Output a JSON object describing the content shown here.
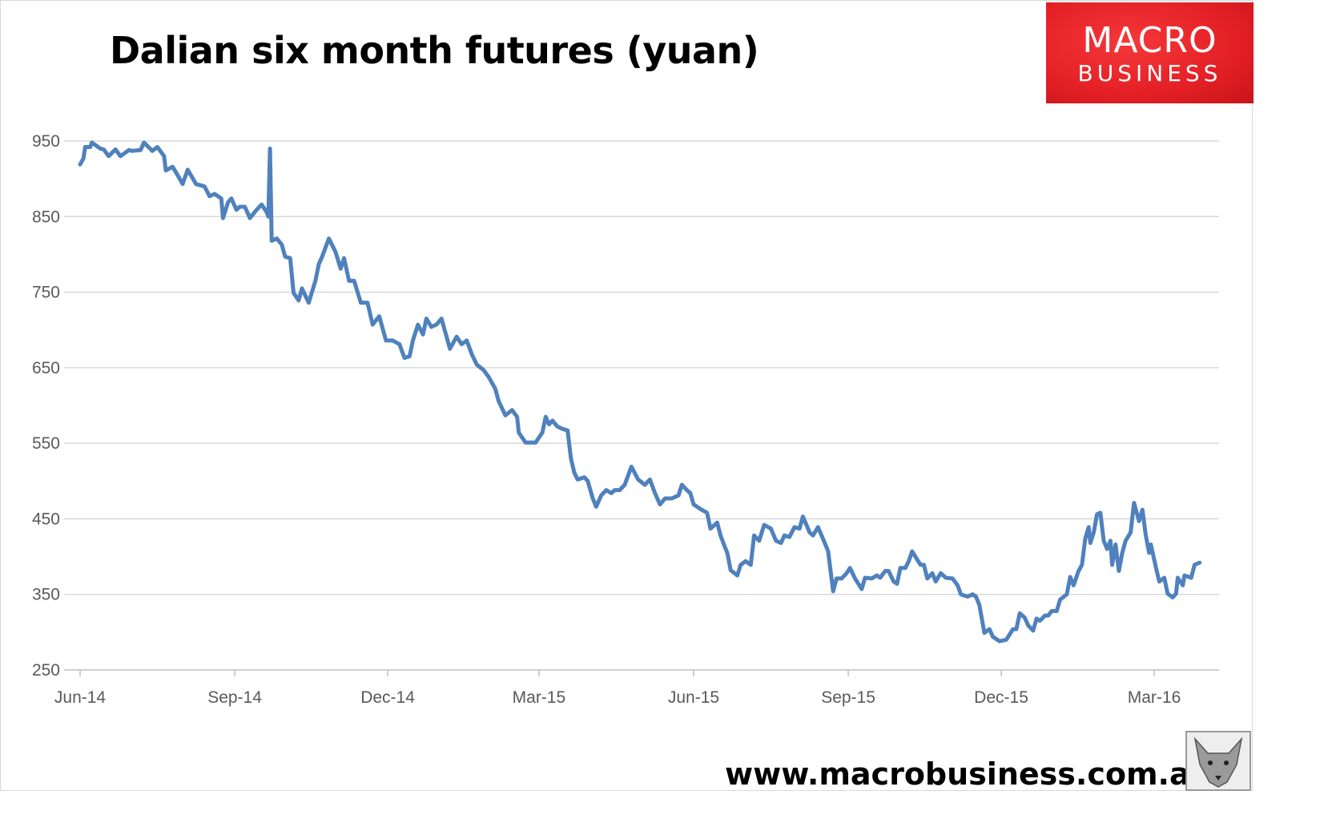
{
  "title": "Dalian six month futures (yuan)",
  "logo": {
    "line1": "MACRO",
    "line2": "BUSINESS",
    "color": "#e32025"
  },
  "footer": "www.macrobusiness.com.au",
  "chart_data": {
    "type": "line",
    "title": "Dalian six month futures (yuan)",
    "xlabel": "",
    "ylabel": "",
    "ylim": [
      250,
      950
    ],
    "yticks": [
      "250",
      "350",
      "450",
      "550",
      "650",
      "750",
      "850",
      "950"
    ],
    "xticks": [
      {
        "date": "2014-06-01",
        "label": "Jun-14"
      },
      {
        "date": "2014-09-01",
        "label": "Sep-14"
      },
      {
        "date": "2014-12-01",
        "label": "Dec-14"
      },
      {
        "date": "2015-03-01",
        "label": "Mar-15"
      },
      {
        "date": "2015-06-01",
        "label": "Jun-15"
      },
      {
        "date": "2015-09-01",
        "label": "Sep-15"
      },
      {
        "date": "2015-12-01",
        "label": "Dec-15"
      },
      {
        "date": "2016-03-01",
        "label": "Mar-16"
      }
    ],
    "xlim": [
      "2014-06-01",
      "2016-04-08"
    ],
    "grid": "horizontal",
    "legend": "none",
    "line_color": "#4f81bd",
    "series": [
      {
        "points": [
          [
            "2014-06-01",
            919
          ],
          [
            "2014-06-03",
            927
          ],
          [
            "2014-06-04",
            942
          ],
          [
            "2014-06-07",
            942
          ],
          [
            "2014-06-08",
            948
          ],
          [
            "2014-06-13",
            940
          ],
          [
            "2014-06-15",
            939
          ],
          [
            "2014-06-18",
            930
          ],
          [
            "2014-06-22",
            939
          ],
          [
            "2014-06-25",
            930
          ],
          [
            "2014-06-30",
            938
          ],
          [
            "2014-07-02",
            937
          ],
          [
            "2014-07-07",
            938
          ],
          [
            "2014-07-09",
            948
          ],
          [
            "2014-07-14",
            937
          ],
          [
            "2014-07-17",
            942
          ],
          [
            "2014-07-21",
            930
          ],
          [
            "2014-07-22",
            911
          ],
          [
            "2014-07-26",
            916
          ],
          [
            "2014-07-29",
            905
          ],
          [
            "2014-08-01",
            893
          ],
          [
            "2014-08-04",
            912
          ],
          [
            "2014-08-09",
            893
          ],
          [
            "2014-08-14",
            890
          ],
          [
            "2014-08-17",
            877
          ],
          [
            "2014-08-20",
            880
          ],
          [
            "2014-08-24",
            874
          ],
          [
            "2014-08-25",
            848
          ],
          [
            "2014-08-28",
            869
          ],
          [
            "2014-08-30",
            874
          ],
          [
            "2014-09-02",
            859
          ],
          [
            "2014-09-04",
            863
          ],
          [
            "2014-09-07",
            863
          ],
          [
            "2014-09-10",
            848
          ],
          [
            "2014-09-14",
            859
          ],
          [
            "2014-09-17",
            866
          ],
          [
            "2014-09-20",
            856
          ],
          [
            "2014-09-21",
            850
          ],
          [
            "2014-09-22",
            940
          ],
          [
            "2014-09-23",
            818
          ],
          [
            "2014-09-26",
            821
          ],
          [
            "2014-09-29",
            813
          ],
          [
            "2014-10-01",
            797
          ],
          [
            "2014-10-04",
            795
          ],
          [
            "2014-10-06",
            749
          ],
          [
            "2014-10-09",
            739
          ],
          [
            "2014-10-11",
            755
          ],
          [
            "2014-10-15",
            736
          ],
          [
            "2014-10-19",
            765
          ],
          [
            "2014-10-21",
            787
          ],
          [
            "2014-10-23",
            797
          ],
          [
            "2014-10-27",
            821
          ],
          [
            "2014-10-31",
            803
          ],
          [
            "2014-11-03",
            781
          ],
          [
            "2014-11-05",
            795
          ],
          [
            "2014-11-08",
            765
          ],
          [
            "2014-11-11",
            765
          ],
          [
            "2014-11-15",
            736
          ],
          [
            "2014-11-19",
            736
          ],
          [
            "2014-11-22",
            707
          ],
          [
            "2014-11-26",
            718
          ],
          [
            "2014-11-30",
            686
          ],
          [
            "2014-12-04",
            686
          ],
          [
            "2014-12-08",
            681
          ],
          [
            "2014-12-11",
            663
          ],
          [
            "2014-12-14",
            665
          ],
          [
            "2014-12-16",
            686
          ],
          [
            "2014-12-19",
            707
          ],
          [
            "2014-12-22",
            694
          ],
          [
            "2014-12-24",
            715
          ],
          [
            "2014-12-27",
            704
          ],
          [
            "2014-12-30",
            707
          ],
          [
            "2015-01-02",
            715
          ],
          [
            "2015-01-05",
            691
          ],
          [
            "2015-01-07",
            675
          ],
          [
            "2015-01-11",
            691
          ],
          [
            "2015-01-14",
            681
          ],
          [
            "2015-01-17",
            686
          ],
          [
            "2015-01-20",
            668
          ],
          [
            "2015-01-23",
            654
          ],
          [
            "2015-01-27",
            647
          ],
          [
            "2015-01-30",
            638
          ],
          [
            "2015-02-03",
            622
          ],
          [
            "2015-02-05",
            606
          ],
          [
            "2015-02-09",
            587
          ],
          [
            "2015-02-13",
            594
          ],
          [
            "2015-02-16",
            585
          ],
          [
            "2015-02-17",
            564
          ],
          [
            "2015-02-21",
            551
          ],
          [
            "2015-02-27",
            551
          ],
          [
            "2015-03-03",
            564
          ],
          [
            "2015-03-05",
            585
          ],
          [
            "2015-03-07",
            575
          ],
          [
            "2015-03-09",
            580
          ],
          [
            "2015-03-12",
            572
          ],
          [
            "2015-03-15",
            569
          ],
          [
            "2015-03-18",
            567
          ],
          [
            "2015-03-20",
            530
          ],
          [
            "2015-03-22",
            511
          ],
          [
            "2015-03-24",
            502
          ],
          [
            "2015-03-28",
            505
          ],
          [
            "2015-03-30",
            500
          ],
          [
            "2015-04-02",
            477
          ],
          [
            "2015-04-04",
            466
          ],
          [
            "2015-04-07",
            481
          ],
          [
            "2015-04-10",
            488
          ],
          [
            "2015-04-13",
            484
          ],
          [
            "2015-04-15",
            488
          ],
          [
            "2015-04-18",
            488
          ],
          [
            "2015-04-21",
            495
          ],
          [
            "2015-04-25",
            519
          ],
          [
            "2015-04-29",
            502
          ],
          [
            "2015-05-03",
            495
          ],
          [
            "2015-05-06",
            502
          ],
          [
            "2015-05-09",
            484
          ],
          [
            "2015-05-12",
            469
          ],
          [
            "2015-05-15",
            477
          ],
          [
            "2015-05-19",
            477
          ],
          [
            "2015-05-23",
            481
          ],
          [
            "2015-05-25",
            495
          ],
          [
            "2015-05-28",
            488
          ],
          [
            "2015-05-30",
            484
          ],
          [
            "2015-06-01",
            469
          ],
          [
            "2015-06-05",
            463
          ],
          [
            "2015-06-09",
            458
          ],
          [
            "2015-06-11",
            437
          ],
          [
            "2015-06-15",
            445
          ],
          [
            "2015-06-17",
            428
          ],
          [
            "2015-06-19",
            416
          ],
          [
            "2015-06-21",
            405
          ],
          [
            "2015-06-23",
            382
          ],
          [
            "2015-06-27",
            375
          ],
          [
            "2015-06-29",
            389
          ],
          [
            "2015-07-02",
            394
          ],
          [
            "2015-07-05",
            389
          ],
          [
            "2015-07-07",
            428
          ],
          [
            "2015-07-10",
            421
          ],
          [
            "2015-07-13",
            442
          ],
          [
            "2015-07-17",
            437
          ],
          [
            "2015-07-20",
            421
          ],
          [
            "2015-07-23",
            418
          ],
          [
            "2015-07-25",
            428
          ],
          [
            "2015-07-28",
            426
          ],
          [
            "2015-07-31",
            439
          ],
          [
            "2015-08-03",
            437
          ],
          [
            "2015-08-05",
            453
          ],
          [
            "2015-08-09",
            432
          ],
          [
            "2015-08-11",
            428
          ],
          [
            "2015-08-14",
            439
          ],
          [
            "2015-08-18",
            418
          ],
          [
            "2015-08-20",
            407
          ],
          [
            "2015-08-23",
            354
          ],
          [
            "2015-08-25",
            371
          ],
          [
            "2015-08-28",
            371
          ],
          [
            "2015-08-31",
            378
          ],
          [
            "2015-09-02",
            385
          ],
          [
            "2015-09-05",
            371
          ],
          [
            "2015-09-09",
            357
          ],
          [
            "2015-09-11",
            372
          ],
          [
            "2015-09-15",
            371
          ],
          [
            "2015-09-18",
            375
          ],
          [
            "2015-09-20",
            372
          ],
          [
            "2015-09-23",
            381
          ],
          [
            "2015-09-25",
            381
          ],
          [
            "2015-09-28",
            367
          ],
          [
            "2015-09-30",
            364
          ],
          [
            "2015-10-02",
            385
          ],
          [
            "2015-10-05",
            385
          ],
          [
            "2015-10-07",
            394
          ],
          [
            "2015-10-09",
            407
          ],
          [
            "2015-10-12",
            396
          ],
          [
            "2015-10-14",
            389
          ],
          [
            "2015-10-16",
            389
          ],
          [
            "2015-10-18",
            371
          ],
          [
            "2015-10-21",
            378
          ],
          [
            "2015-10-23",
            367
          ],
          [
            "2015-10-26",
            378
          ],
          [
            "2015-10-29",
            372
          ],
          [
            "2015-11-02",
            371
          ],
          [
            "2015-11-05",
            362
          ],
          [
            "2015-11-07",
            350
          ],
          [
            "2015-11-11",
            347
          ],
          [
            "2015-11-14",
            350
          ],
          [
            "2015-11-16",
            347
          ],
          [
            "2015-11-18",
            336
          ],
          [
            "2015-11-21",
            299
          ],
          [
            "2015-11-24",
            304
          ],
          [
            "2015-11-26",
            294
          ],
          [
            "2015-11-30",
            288
          ],
          [
            "2015-12-04",
            290
          ],
          [
            "2015-12-08",
            304
          ],
          [
            "2015-12-10",
            304
          ],
          [
            "2015-12-12",
            325
          ],
          [
            "2015-12-15",
            319
          ],
          [
            "2015-12-17",
            309
          ],
          [
            "2015-12-20",
            302
          ],
          [
            "2015-12-22",
            318
          ],
          [
            "2015-12-24",
            315
          ],
          [
            "2015-12-27",
            322
          ],
          [
            "2015-12-29",
            322
          ],
          [
            "2015-12-31",
            328
          ],
          [
            "2016-01-03",
            328
          ],
          [
            "2016-01-05",
            343
          ],
          [
            "2016-01-09",
            350
          ],
          [
            "2016-01-11",
            373
          ],
          [
            "2016-01-13",
            362
          ],
          [
            "2016-01-16",
            381
          ],
          [
            "2016-01-18",
            389
          ],
          [
            "2016-01-20",
            424
          ],
          [
            "2016-01-22",
            439
          ],
          [
            "2016-01-23",
            418
          ],
          [
            "2016-01-25",
            432
          ],
          [
            "2016-01-27",
            456
          ],
          [
            "2016-01-29",
            458
          ],
          [
            "2016-01-31",
            421
          ],
          [
            "2016-02-02",
            410
          ],
          [
            "2016-02-04",
            421
          ],
          [
            "2016-02-05",
            389
          ],
          [
            "2016-02-07",
            416
          ],
          [
            "2016-02-09",
            381
          ],
          [
            "2016-02-11",
            405
          ],
          [
            "2016-02-13",
            421
          ],
          [
            "2016-02-16",
            432
          ],
          [
            "2016-02-18",
            471
          ],
          [
            "2016-02-21",
            447
          ],
          [
            "2016-02-23",
            462
          ],
          [
            "2016-02-25",
            428
          ],
          [
            "2016-02-27",
            405
          ],
          [
            "2016-02-28",
            416
          ],
          [
            "2016-03-02",
            386
          ],
          [
            "2016-03-04",
            367
          ],
          [
            "2016-03-07",
            372
          ],
          [
            "2016-03-09",
            351
          ],
          [
            "2016-03-12",
            346
          ],
          [
            "2016-03-14",
            351
          ],
          [
            "2016-03-15",
            372
          ],
          [
            "2016-03-18",
            362
          ],
          [
            "2016-03-19",
            375
          ],
          [
            "2016-03-23",
            372
          ],
          [
            "2016-03-25",
            389
          ],
          [
            "2016-03-28",
            392
          ]
        ]
      }
    ]
  }
}
